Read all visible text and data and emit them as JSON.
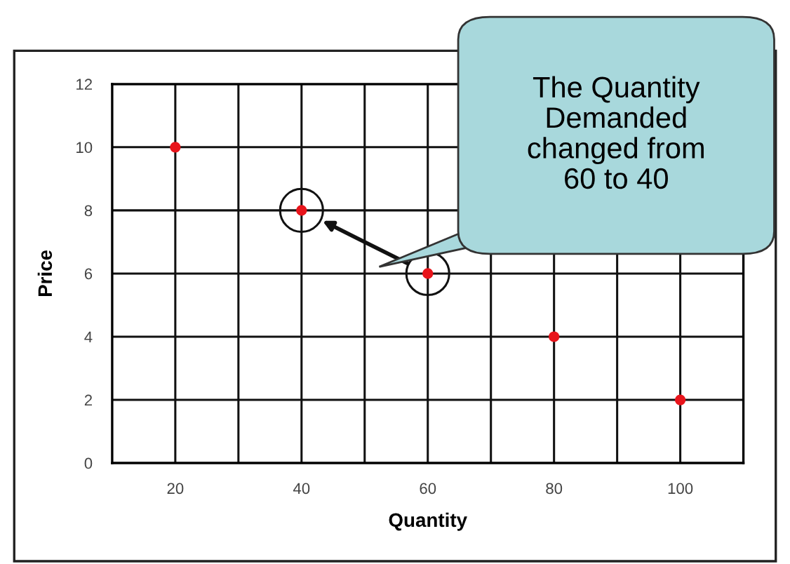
{
  "chart_data": {
    "type": "scatter",
    "xlabel": "Quantity",
    "ylabel": "Price",
    "x": [
      20,
      40,
      60,
      80,
      100
    ],
    "series": [
      {
        "color": "#e8141b",
        "values": [
          10,
          8,
          6,
          4,
          2
        ]
      }
    ],
    "xlim": [
      10,
      110
    ],
    "ylim": [
      0,
      12
    ],
    "xticks": [
      20,
      {
        "value": 30,
        "label": null
      },
      40,
      {
        "value": 50,
        "label": null
      },
      60,
      {
        "value": 70,
        "label": null
      },
      80,
      {
        "value": 90,
        "label": null
      },
      100
    ],
    "yticks": [
      0,
      2,
      4,
      6,
      8,
      10,
      12
    ],
    "grid": true,
    "marker": "circle",
    "annotations": [
      "The Quantity\nDemanded\nchanged from\n60 to 40"
    ]
  }
}
